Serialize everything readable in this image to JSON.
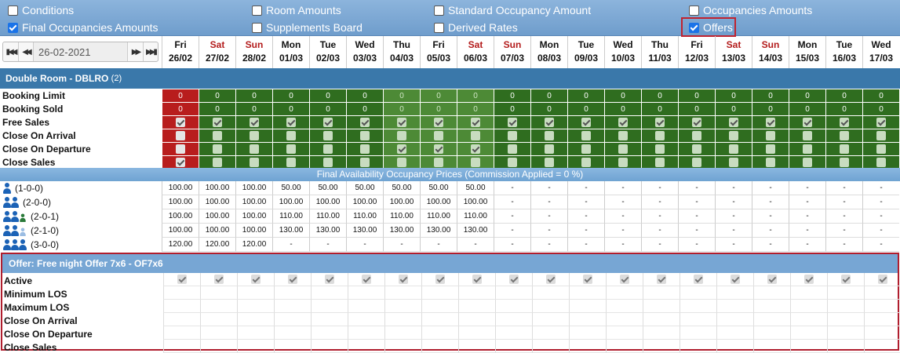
{
  "options": [
    {
      "label": "Conditions",
      "checked": false
    },
    {
      "label": "Room Amounts",
      "checked": false
    },
    {
      "label": "Standard Occupancy Amount",
      "checked": false
    },
    {
      "label": "Occupancies Amounts",
      "checked": false
    },
    {
      "label": "Final Occupancies Amounts",
      "checked": true
    },
    {
      "label": "Supplements Board",
      "checked": false
    },
    {
      "label": "Derived Rates",
      "checked": false
    },
    {
      "label": "Offers",
      "checked": true
    }
  ],
  "nav": {
    "date": "26-02-2021"
  },
  "days": [
    {
      "day": "Fri",
      "date": "26/02"
    },
    {
      "day": "Sat",
      "date": "27/02"
    },
    {
      "day": "Sun",
      "date": "28/02"
    },
    {
      "day": "Mon",
      "date": "01/03"
    },
    {
      "day": "Tue",
      "date": "02/03"
    },
    {
      "day": "Wed",
      "date": "03/03"
    },
    {
      "day": "Thu",
      "date": "04/03"
    },
    {
      "day": "Fri",
      "date": "05/03"
    },
    {
      "day": "Sat",
      "date": "06/03"
    },
    {
      "day": "Sun",
      "date": "07/03"
    },
    {
      "day": "Mon",
      "date": "08/03"
    },
    {
      "day": "Tue",
      "date": "09/03"
    },
    {
      "day": "Wed",
      "date": "10/03"
    },
    {
      "day": "Thu",
      "date": "11/03"
    },
    {
      "day": "Fri",
      "date": "12/03"
    },
    {
      "day": "Sat",
      "date": "13/03"
    },
    {
      "day": "Sun",
      "date": "14/03"
    },
    {
      "day": "Mon",
      "date": "15/03"
    },
    {
      "day": "Tue",
      "date": "16/03"
    },
    {
      "day": "Wed",
      "date": "17/03"
    }
  ],
  "colors": {
    "closed": "#b81d1d",
    "open": "#2f6d1f",
    "open_light": "#4d8a36",
    "highlight": "#c0232f"
  },
  "room": {
    "title": "Double Room - DBLRO",
    "count": "(2)",
    "day_status": [
      "closed",
      "open",
      "open",
      "open",
      "open",
      "open",
      "light",
      "light",
      "light",
      "open",
      "open",
      "open",
      "open",
      "open",
      "open",
      "open",
      "open",
      "open",
      "open",
      "open"
    ],
    "rows": [
      {
        "label": "Booking Limit",
        "type": "value",
        "value": "0"
      },
      {
        "label": "Booking Sold",
        "type": "value",
        "value": "0"
      },
      {
        "label": "Free Sales",
        "type": "check",
        "checked_days": [
          0,
          1,
          2,
          3,
          4,
          5,
          6,
          7,
          8,
          9,
          10,
          11,
          12,
          13,
          14,
          15,
          16,
          17,
          18,
          19
        ]
      },
      {
        "label": "Close On Arrival",
        "type": "check",
        "checked_days": []
      },
      {
        "label": "Close On Departure",
        "type": "check",
        "checked_days": [
          6,
          7,
          8
        ]
      },
      {
        "label": "Close Sales",
        "type": "check",
        "checked_days": [
          0
        ]
      }
    ]
  },
  "final_title": "Final Availability Occupancy Prices (Commission Applied = 0 %)",
  "occupancies": [
    {
      "label": "(1-0-0)",
      "icons": [
        "adult"
      ],
      "prices": [
        "100.00",
        "100.00",
        "100.00",
        "50.00",
        "50.00",
        "50.00",
        "50.00",
        "50.00",
        "50.00",
        "-",
        "-",
        "-",
        "-",
        "-",
        "-",
        "-",
        "-",
        "-",
        "-",
        "-"
      ]
    },
    {
      "label": "(2-0-0)",
      "icons": [
        "adult",
        "adult"
      ],
      "prices": [
        "100.00",
        "100.00",
        "100.00",
        "100.00",
        "100.00",
        "100.00",
        "100.00",
        "100.00",
        "100.00",
        "-",
        "-",
        "-",
        "-",
        "-",
        "-",
        "-",
        "-",
        "-",
        "-",
        "-"
      ]
    },
    {
      "label": "(2-0-1)",
      "icons": [
        "adult",
        "adult",
        "child"
      ],
      "prices": [
        "100.00",
        "100.00",
        "100.00",
        "110.00",
        "110.00",
        "110.00",
        "110.00",
        "110.00",
        "110.00",
        "-",
        "-",
        "-",
        "-",
        "-",
        "-",
        "-",
        "-",
        "-",
        "-",
        "-"
      ]
    },
    {
      "label": "(2-1-0)",
      "icons": [
        "adult",
        "adult",
        "infant"
      ],
      "prices": [
        "100.00",
        "100.00",
        "100.00",
        "130.00",
        "130.00",
        "130.00",
        "130.00",
        "130.00",
        "130.00",
        "-",
        "-",
        "-",
        "-",
        "-",
        "-",
        "-",
        "-",
        "-",
        "-",
        "-"
      ]
    },
    {
      "label": "(3-0-0)",
      "icons": [
        "adult",
        "adult",
        "adult"
      ],
      "prices": [
        "120.00",
        "120.00",
        "120.00",
        "-",
        "-",
        "-",
        "-",
        "-",
        "-",
        "-",
        "-",
        "-",
        "-",
        "-",
        "-",
        "-",
        "-",
        "-",
        "-",
        "-"
      ]
    }
  ],
  "offer": {
    "title": "Offer: Free night Offer 7x6 - OF7x6",
    "rows": [
      {
        "label": "Active",
        "type": "check"
      },
      {
        "label": "Minimum LOS",
        "type": "empty"
      },
      {
        "label": "Maximum LOS",
        "type": "empty"
      },
      {
        "label": "Close On Arrival",
        "type": "empty"
      },
      {
        "label": "Close On Departure",
        "type": "empty"
      },
      {
        "label": "Close Sales",
        "type": "empty"
      }
    ]
  }
}
